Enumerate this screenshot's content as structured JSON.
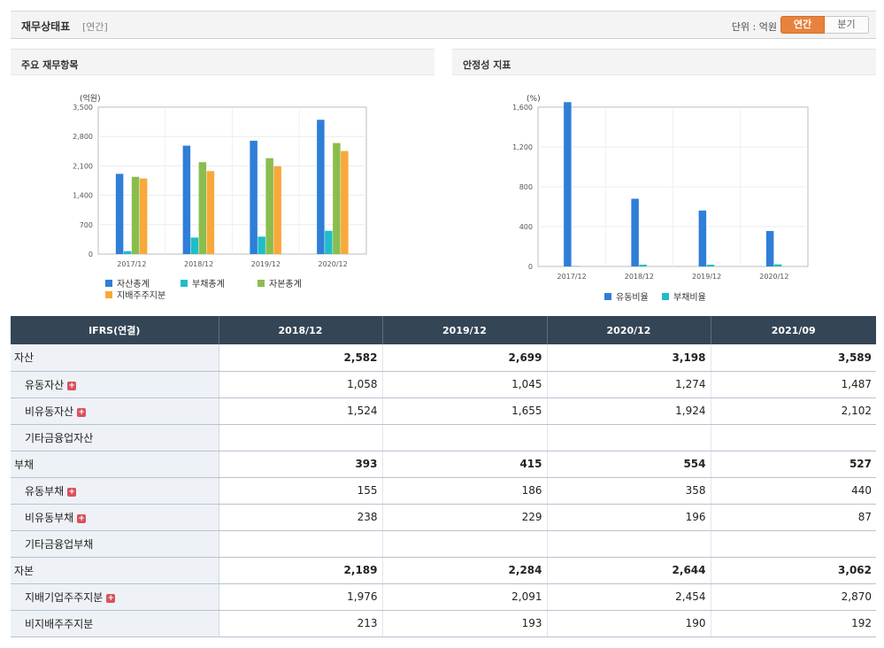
{
  "header": {
    "title": "재무상태표",
    "period_tag": "[연간]",
    "unit_label": "단위 : 억원",
    "toggle": [
      {
        "label": "연간",
        "active": true
      },
      {
        "label": "분기",
        "active": false
      }
    ]
  },
  "colors": {
    "asset_total": "#2f7ed8",
    "liability_total": "#1fbdc8",
    "equity_total": "#8bbd4e",
    "controlling_equity": "#f9a83a",
    "current_ratio": "#2f7ed8",
    "debt_ratio": "#1fbdc8"
  },
  "chart_data": [
    {
      "type": "bar",
      "title": "주요 재무항목",
      "ylabel": "(억원)",
      "categories": [
        "2017/12",
        "2018/12",
        "2019/12",
        "2020/12"
      ],
      "ylim": [
        0,
        3500
      ],
      "yticks": [
        "0",
        "700",
        "1,400",
        "2,100",
        "2,800",
        "3,500"
      ],
      "ytick_values": [
        0,
        700,
        1400,
        2100,
        2800,
        3500
      ],
      "series": [
        {
          "name": "자산총계",
          "values": [
            1910,
            2582,
            2699,
            3198
          ]
        },
        {
          "name": "부채총계",
          "values": [
            70,
            393,
            415,
            554
          ]
        },
        {
          "name": "자본총계",
          "values": [
            1840,
            2189,
            2284,
            2644
          ]
        },
        {
          "name": "지배주주지분",
          "values": [
            1800,
            1976,
            2091,
            2454
          ]
        }
      ],
      "legend": "bottom-left"
    },
    {
      "type": "bar",
      "title": "안정성 지표",
      "ylabel": "(%)",
      "categories": [
        "2017/12",
        "2018/12",
        "2019/12",
        "2020/12"
      ],
      "ylim": [
        0,
        1600
      ],
      "yticks": [
        "0",
        "400",
        "800",
        "1,200",
        "1,600"
      ],
      "ytick_values": [
        0,
        400,
        800,
        1200,
        1600
      ],
      "series": [
        {
          "name": "유동비율",
          "values": [
            1650,
            680,
            562,
            356
          ]
        },
        {
          "name": "부채비율",
          "values": [
            4,
            18,
            18,
            21
          ]
        }
      ],
      "legend": "bottom-center"
    }
  ],
  "table": {
    "header": [
      "IFRS(연결)",
      "2018/12",
      "2019/12",
      "2020/12",
      "2021/09"
    ],
    "rows": [
      {
        "label": "자산",
        "values": [
          "2,582",
          "2,699",
          "3,198",
          "3,589"
        ],
        "bold": true,
        "sub": false,
        "plus": false
      },
      {
        "label": "유동자산",
        "values": [
          "1,058",
          "1,045",
          "1,274",
          "1,487"
        ],
        "bold": false,
        "sub": true,
        "plus": true
      },
      {
        "label": "비유동자산",
        "values": [
          "1,524",
          "1,655",
          "1,924",
          "2,102"
        ],
        "bold": false,
        "sub": true,
        "plus": true
      },
      {
        "label": "기타금융업자산",
        "values": [
          "",
          "",
          "",
          ""
        ],
        "bold": false,
        "sub": true,
        "plus": false
      },
      {
        "label": "부채",
        "values": [
          "393",
          "415",
          "554",
          "527"
        ],
        "bold": true,
        "sub": false,
        "plus": false
      },
      {
        "label": "유동부채",
        "values": [
          "155",
          "186",
          "358",
          "440"
        ],
        "bold": false,
        "sub": true,
        "plus": true
      },
      {
        "label": "비유동부채",
        "values": [
          "238",
          "229",
          "196",
          "87"
        ],
        "bold": false,
        "sub": true,
        "plus": true
      },
      {
        "label": "기타금융업부채",
        "values": [
          "",
          "",
          "",
          ""
        ],
        "bold": false,
        "sub": true,
        "plus": false
      },
      {
        "label": "자본",
        "values": [
          "2,189",
          "2,284",
          "2,644",
          "3,062"
        ],
        "bold": true,
        "sub": false,
        "plus": false
      },
      {
        "label": "지배기업주주지분",
        "values": [
          "1,976",
          "2,091",
          "2,454",
          "2,870"
        ],
        "bold": false,
        "sub": true,
        "plus": true
      },
      {
        "label": "비지배주주지분",
        "values": [
          "213",
          "193",
          "190",
          "192"
        ],
        "bold": false,
        "sub": true,
        "plus": false
      }
    ]
  }
}
